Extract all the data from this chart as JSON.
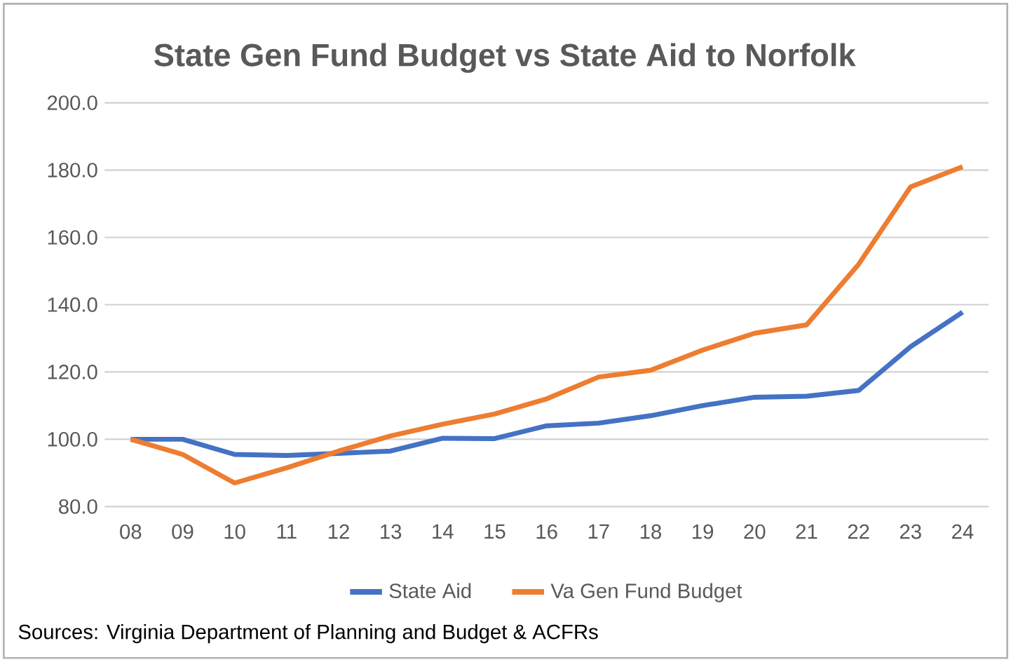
{
  "chart_data": {
    "type": "line",
    "title": "State Gen Fund Budget vs State Aid to Norfolk",
    "categories": [
      "08",
      "09",
      "10",
      "11",
      "12",
      "13",
      "14",
      "15",
      "16",
      "17",
      "18",
      "19",
      "20",
      "21",
      "22",
      "23",
      "24"
    ],
    "series": [
      {
        "name": "State Aid",
        "color": "#4472c4",
        "values": [
          100,
          100,
          95.5,
          95.2,
          95.8,
          96.5,
          100.3,
          100.2,
          104,
          104.8,
          107,
          110,
          112.5,
          112.8,
          114.5,
          127.5,
          137.8
        ]
      },
      {
        "name": "Va Gen Fund Budget",
        "color": "#ed7d31",
        "values": [
          100,
          95.5,
          87,
          91.5,
          96.5,
          101,
          104.5,
          107.5,
          112,
          118.5,
          120.5,
          126.5,
          131.5,
          134,
          152,
          175,
          181
        ]
      }
    ],
    "ylim": [
      80,
      200
    ],
    "yticks": [
      {
        "value": 80,
        "label": "80.0"
      },
      {
        "value": 100,
        "label": "100.0"
      },
      {
        "value": 120,
        "label": "120.0"
      },
      {
        "value": 140,
        "label": "140.0"
      },
      {
        "value": 160,
        "label": "160.0"
      },
      {
        "value": 180,
        "label": "180.0"
      },
      {
        "value": 200,
        "label": "200.0"
      }
    ],
    "grid": "y",
    "legend": "bottom",
    "marker": "none",
    "line_style": "solid",
    "annotations": [
      "Sources: Virginia Department of Planning and Budget & ACFRs"
    ]
  }
}
